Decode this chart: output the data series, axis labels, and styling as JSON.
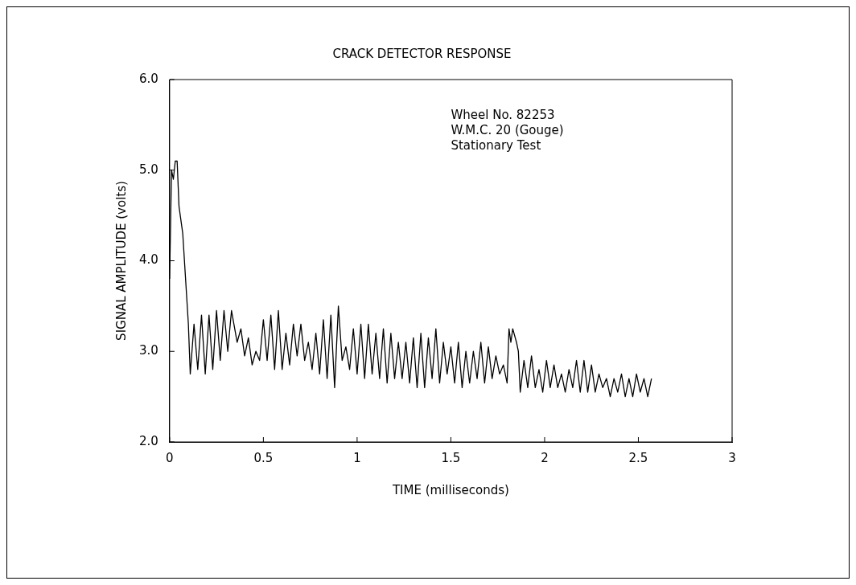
{
  "chart_data": {
    "type": "line",
    "title": "CRACK DETECTOR RESPONSE",
    "xlabel": "TIME (milliseconds)",
    "ylabel": "SIGNAL AMPLITUDE (volts)",
    "annotations": [
      "Wheel No. 82253",
      "W.M.C. 20 (Gouge)",
      "Stationary Test"
    ],
    "xlim": [
      0,
      3
    ],
    "xticks": [
      0,
      0.5,
      1,
      1.5,
      2,
      2.5,
      3
    ],
    "ylim": [
      2,
      6
    ],
    "yticks": [
      {
        "value": 2,
        "label": "2.0"
      },
      {
        "value": 3,
        "label": "3.0"
      },
      {
        "value": 4,
        "label": "4.0"
      },
      {
        "value": 5,
        "label": "5.0"
      },
      {
        "value": 6,
        "label": "6.0"
      }
    ],
    "grid": false,
    "legend": false,
    "marker": "none",
    "line_style": "solid",
    "series": [
      {
        "color": "#000000",
        "x": [
          0,
          0.01,
          0.02,
          0.03,
          0.04,
          0.05,
          0.07,
          0.1,
          0.11,
          0.13,
          0.15,
          0.17,
          0.19,
          0.21,
          0.23,
          0.25,
          0.27,
          0.29,
          0.31,
          0.33,
          0.36,
          0.38,
          0.4,
          0.42,
          0.44,
          0.46,
          0.48,
          0.5,
          0.52,
          0.54,
          0.56,
          0.58,
          0.6,
          0.62,
          0.64,
          0.66,
          0.68,
          0.7,
          0.72,
          0.74,
          0.76,
          0.78,
          0.8,
          0.82,
          0.84,
          0.86,
          0.88,
          0.9,
          0.92,
          0.94,
          0.96,
          0.98,
          1,
          1.02,
          1.04,
          1.06,
          1.08,
          1.1,
          1.12,
          1.14,
          1.16,
          1.18,
          1.2,
          1.22,
          1.24,
          1.26,
          1.28,
          1.3,
          1.32,
          1.34,
          1.36,
          1.38,
          1.4,
          1.42,
          1.44,
          1.46,
          1.48,
          1.5,
          1.52,
          1.54,
          1.56,
          1.58,
          1.6,
          1.62,
          1.64,
          1.66,
          1.68,
          1.7,
          1.72,
          1.74,
          1.76,
          1.78,
          1.8,
          1.81,
          1.82,
          1.83,
          1.85,
          1.86,
          1.87,
          1.89,
          1.91,
          1.93,
          1.95,
          1.97,
          1.99,
          2.01,
          2.03,
          2.05,
          2.07,
          2.09,
          2.11,
          2.13,
          2.15,
          2.17,
          2.19,
          2.21,
          2.23,
          2.25,
          2.27,
          2.29,
          2.31,
          2.33,
          2.35,
          2.37,
          2.39,
          2.41,
          2.43,
          2.45,
          2.47,
          2.49,
          2.51,
          2.53,
          2.55,
          2.57
        ],
        "values": [
          3.8,
          5.0,
          4.9,
          5.1,
          5.1,
          4.6,
          4.3,
          3.3,
          2.75,
          3.3,
          2.8,
          3.4,
          2.75,
          3.4,
          2.8,
          3.45,
          2.9,
          3.45,
          3.0,
          3.45,
          3.1,
          3.25,
          2.95,
          3.15,
          2.85,
          3.0,
          2.9,
          3.35,
          2.9,
          3.4,
          2.8,
          3.45,
          2.8,
          3.2,
          2.85,
          3.3,
          2.95,
          3.3,
          2.9,
          3.1,
          2.8,
          3.2,
          2.75,
          3.35,
          2.7,
          3.4,
          2.6,
          3.5,
          2.9,
          3.05,
          2.8,
          3.25,
          2.75,
          3.3,
          2.7,
          3.3,
          2.75,
          3.2,
          2.7,
          3.25,
          2.65,
          3.2,
          2.7,
          3.1,
          2.7,
          3.1,
          2.65,
          3.15,
          2.6,
          3.2,
          2.6,
          3.15,
          2.7,
          3.25,
          2.65,
          3.1,
          2.75,
          3.05,
          2.65,
          3.1,
          2.6,
          3.0,
          2.65,
          3.0,
          2.7,
          3.1,
          2.65,
          3.05,
          2.7,
          2.95,
          2.75,
          2.85,
          2.65,
          3.25,
          3.1,
          3.25,
          3.1,
          3.0,
          2.55,
          2.9,
          2.6,
          2.95,
          2.6,
          2.8,
          2.55,
          2.9,
          2.6,
          2.85,
          2.6,
          2.75,
          2.55,
          2.8,
          2.6,
          2.9,
          2.55,
          2.9,
          2.55,
          2.85,
          2.55,
          2.75,
          2.6,
          2.7,
          2.5,
          2.7,
          2.55,
          2.75,
          2.5,
          2.7,
          2.5,
          2.75,
          2.55,
          2.7,
          2.5,
          2.7
        ]
      }
    ]
  }
}
